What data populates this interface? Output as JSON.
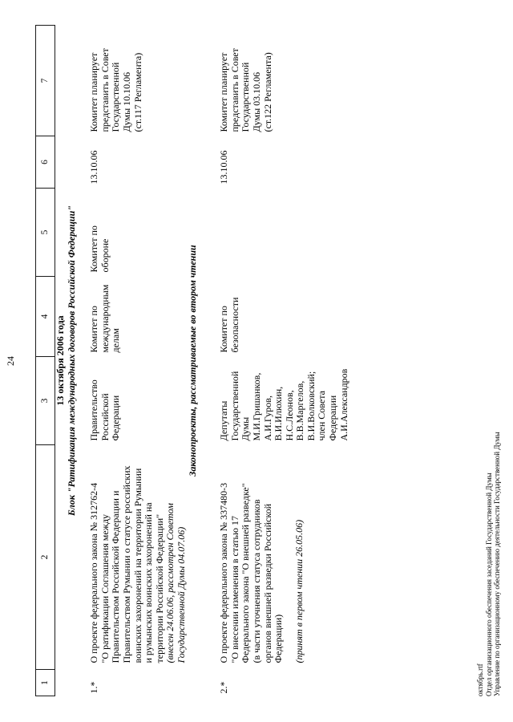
{
  "page": {
    "number": "24",
    "date_heading": "13 октября 2006 года",
    "block_title": "Блок \"Ратификация международных договоров Российской Федерации\"",
    "section_heading": "Законопроекты, рассматриваемые во втором чтении",
    "footer_lines": [
      {
        "t": "октябрь.rtf"
      },
      {
        "t": "Отдел организационного обеспечения заседаний Государственной Думы"
      },
      {
        "t": "Управление по организационному обеспечению деятельности Государственной Думы"
      }
    ]
  },
  "table": {
    "header_cols": [
      "1",
      "2",
      "3",
      "4",
      "5",
      "6",
      "7"
    ],
    "rows": [
      {
        "num": "1.*",
        "title_lines": [
          {
            "t": "О проекте федерального закона № 312762-4"
          },
          {
            "t": "\"О ратификации Соглашения между"
          },
          {
            "t": "Правительством Российской Федерации и"
          },
          {
            "t": "Правительством Румынии о статусе российских"
          },
          {
            "t": "воинских захоронений на территории Румынии"
          },
          {
            "t": "и румынских воинских захоронений на"
          },
          {
            "t": "территории Российской Федерации\""
          },
          {
            "t": "(внесен 24.06.06, рассмотрен Советом",
            "i": true
          },
          {
            "t": "Государственной Думы 04.07.06)",
            "i": true
          }
        ],
        "initiator_lines": [
          {
            "t": "Правительство"
          },
          {
            "t": "Российской"
          },
          {
            "t": "Федерации"
          }
        ],
        "committee_lines": [
          {
            "t": "Комитет по"
          },
          {
            "t": "международным"
          },
          {
            "t": "делам"
          }
        ],
        "cocommittee_lines": [
          {
            "t": "Комитет по"
          },
          {
            "t": "обороне"
          }
        ],
        "date": "13.10.06",
        "note_lines": [
          {
            "t": "Комитет планирует"
          },
          {
            "t": "представить в Совет"
          },
          {
            "t": "Государственной"
          },
          {
            "t": "Думы 10.10.06"
          },
          {
            "t": "(ст.117 Регламента)"
          }
        ]
      },
      {
        "num": "2.*",
        "title_lines": [
          {
            "t": "О проекте федерального закона № 337480-3"
          },
          {
            "t": "\"О внесении изменения в статью 17"
          },
          {
            "t": "Федерального закона \"О внешней разведке\""
          },
          {
            "t": "(в части уточнения статуса сотрудников"
          },
          {
            "t": "органов внешней разведки Российской"
          },
          {
            "t": "Федерации)"
          },
          {
            "t": "(принят в первом чтении 26.05.06)",
            "i": true,
            "gap": true
          }
        ],
        "initiator_lines": [
          {
            "t": "Депутаты"
          },
          {
            "t": "Государственной"
          },
          {
            "t": "Думы"
          },
          {
            "t": "М.И.Гришанков,"
          },
          {
            "t": "А.И.Гуров,"
          },
          {
            "t": "В.И.Илюхин,"
          },
          {
            "t": "Н.С.Леонов,"
          },
          {
            "t": "В.В.Маргелов,"
          },
          {
            "t": "В.И.Волковский;"
          },
          {
            "t": "член Совета"
          },
          {
            "t": "Федерации"
          },
          {
            "t": "А.И.Александров"
          }
        ],
        "committee_lines": [
          {
            "t": "Комитет по"
          },
          {
            "t": "безопасности"
          }
        ],
        "cocommittee_lines": [],
        "date": "13.10.06",
        "note_lines": [
          {
            "t": "Комитет планирует"
          },
          {
            "t": "представить в Совет"
          },
          {
            "t": "Государственной"
          },
          {
            "t": "Думы 03.10.06"
          },
          {
            "t": "(ст.122 Регламента)"
          }
        ]
      }
    ]
  }
}
